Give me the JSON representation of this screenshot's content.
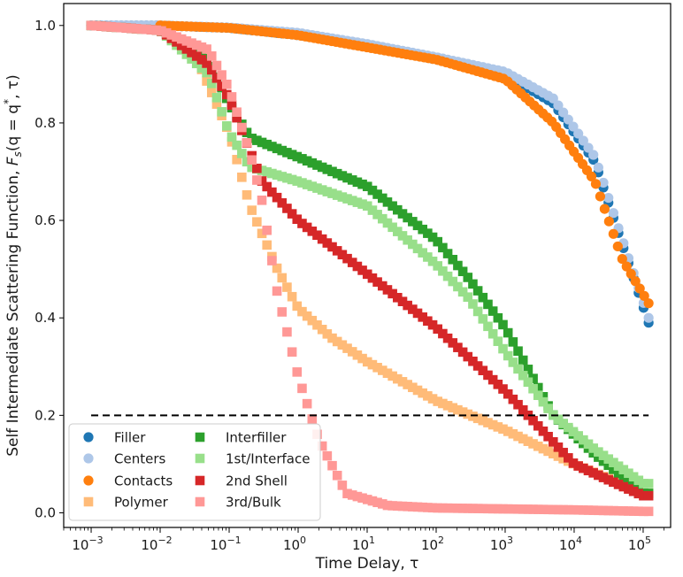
{
  "chart_data": {
    "type": "scatter",
    "title": "",
    "xlabel": "Time Delay, τ",
    "ylabel": "Self Intermediate Scattering Function, F_s(q = q*, τ)",
    "ylabel_parts": {
      "prefix": "Self Intermediate Scattering Function, ",
      "F": "F",
      "F_sub": "s",
      "mid": "(q = q",
      "star": "*",
      "suffix": ", τ)"
    },
    "xscale": "log",
    "xlim": [
      0.0004,
      250000
    ],
    "ylim": [
      -0.03,
      1.045
    ],
    "xticks": [
      {
        "value": 0.001,
        "base": "10",
        "exp": "−3"
      },
      {
        "value": 0.01,
        "base": "10",
        "exp": "−2"
      },
      {
        "value": 0.1,
        "base": "10",
        "exp": "−1"
      },
      {
        "value": 1,
        "base": "10",
        "exp": "0"
      },
      {
        "value": 10,
        "base": "10",
        "exp": "1"
      },
      {
        "value": 100,
        "base": "10",
        "exp": "2"
      },
      {
        "value": 1000,
        "base": "10",
        "exp": "3"
      },
      {
        "value": 10000,
        "base": "10",
        "exp": "4"
      },
      {
        "value": 100000,
        "base": "10",
        "exp": "5"
      }
    ],
    "yticks": [
      {
        "value": 0.0,
        "label": "0.0"
      },
      {
        "value": 0.2,
        "label": "0.2"
      },
      {
        "value": 0.4,
        "label": "0.4"
      },
      {
        "value": 0.6,
        "label": "0.6"
      },
      {
        "value": 0.8,
        "label": "0.8"
      },
      {
        "value": 1.0,
        "label": "1.0"
      }
    ],
    "reference_line": {
      "y": 0.2,
      "style": "dashed",
      "color": "#000000"
    },
    "legend_position": "lower-left",
    "series": [
      {
        "name": "Filler",
        "marker": "circle",
        "color": "#1f77b4",
        "x_range": [
          0.001,
          120000
        ],
        "anchors": [
          [
            0.001,
            1.0
          ],
          [
            0.01,
            1.0
          ],
          [
            0.1,
            0.995
          ],
          [
            1,
            0.98
          ],
          [
            10,
            0.96
          ],
          [
            100,
            0.93
          ],
          [
            1000,
            0.9
          ],
          [
            5000,
            0.84
          ],
          [
            20000,
            0.72
          ],
          [
            50000,
            0.55
          ],
          [
            120000,
            0.39
          ]
        ]
      },
      {
        "name": "Centers",
        "marker": "circle",
        "color": "#aec7e8",
        "x_range": [
          0.001,
          120000
        ],
        "anchors": [
          [
            0.001,
            1.0
          ],
          [
            0.01,
            1.0
          ],
          [
            0.1,
            0.996
          ],
          [
            1,
            0.985
          ],
          [
            10,
            0.962
          ],
          [
            100,
            0.935
          ],
          [
            1000,
            0.905
          ],
          [
            5000,
            0.85
          ],
          [
            20000,
            0.73
          ],
          [
            50000,
            0.56
          ],
          [
            120000,
            0.4
          ]
        ]
      },
      {
        "name": "Contacts",
        "marker": "circle",
        "color": "#ff7f0e",
        "x_range": [
          0.01,
          120000
        ],
        "anchors": [
          [
            0.01,
            1.0
          ],
          [
            0.1,
            0.995
          ],
          [
            1,
            0.98
          ],
          [
            10,
            0.955
          ],
          [
            100,
            0.93
          ],
          [
            1000,
            0.89
          ],
          [
            5000,
            0.8
          ],
          [
            20000,
            0.68
          ],
          [
            50000,
            0.52
          ],
          [
            120000,
            0.43
          ]
        ]
      },
      {
        "name": "Polymer",
        "marker": "square",
        "color": "#ffbb78",
        "x_range": [
          0.001,
          120000
        ],
        "anchors": [
          [
            0.001,
            1.0
          ],
          [
            0.01,
            0.99
          ],
          [
            0.03,
            0.95
          ],
          [
            0.1,
            0.78
          ],
          [
            0.2,
            0.63
          ],
          [
            0.5,
            0.5
          ],
          [
            1,
            0.42
          ],
          [
            3,
            0.36
          ],
          [
            10,
            0.31
          ],
          [
            100,
            0.23
          ],
          [
            1000,
            0.17
          ],
          [
            10000,
            0.1
          ],
          [
            100000,
            0.04
          ]
        ]
      },
      {
        "name": "Interfiller",
        "marker": "square",
        "color": "#2ca02c",
        "x_range": [
          0.001,
          120000
        ],
        "anchors": [
          [
            0.001,
            1.0
          ],
          [
            0.01,
            0.99
          ],
          [
            0.05,
            0.93
          ],
          [
            0.1,
            0.84
          ],
          [
            0.2,
            0.77
          ],
          [
            1,
            0.73
          ],
          [
            10,
            0.67
          ],
          [
            100,
            0.56
          ],
          [
            300,
            0.48
          ],
          [
            1000,
            0.38
          ],
          [
            5000,
            0.2
          ],
          [
            20000,
            0.12
          ],
          [
            100000,
            0.04
          ]
        ]
      },
      {
        "name": "1st/Interface",
        "marker": "square",
        "color": "#98df8a",
        "x_range": [
          0.001,
          120000
        ],
        "anchors": [
          [
            0.001,
            1.0
          ],
          [
            0.01,
            0.99
          ],
          [
            0.05,
            0.9
          ],
          [
            0.1,
            0.78
          ],
          [
            0.2,
            0.71
          ],
          [
            1,
            0.68
          ],
          [
            10,
            0.63
          ],
          [
            100,
            0.51
          ],
          [
            300,
            0.44
          ],
          [
            1000,
            0.33
          ],
          [
            5000,
            0.2
          ],
          [
            20000,
            0.13
          ],
          [
            100000,
            0.06
          ]
        ]
      },
      {
        "name": "2nd Shell",
        "marker": "square",
        "color": "#d62728",
        "x_range": [
          0.001,
          120000
        ],
        "anchors": [
          [
            0.001,
            1.0
          ],
          [
            0.01,
            0.99
          ],
          [
            0.05,
            0.92
          ],
          [
            0.1,
            0.85
          ],
          [
            0.3,
            0.68
          ],
          [
            1,
            0.6
          ],
          [
            10,
            0.49
          ],
          [
            100,
            0.38
          ],
          [
            1000,
            0.25
          ],
          [
            10000,
            0.1
          ],
          [
            100000,
            0.035
          ]
        ]
      },
      {
        "name": "3rd/Bulk",
        "marker": "square",
        "color": "#ff9896",
        "x_range": [
          0.001,
          120000
        ],
        "anchors": [
          [
            0.001,
            1.0
          ],
          [
            0.01,
            0.99
          ],
          [
            0.05,
            0.95
          ],
          [
            0.1,
            0.87
          ],
          [
            0.2,
            0.74
          ],
          [
            0.3,
            0.64
          ],
          [
            0.5,
            0.45
          ],
          [
            1,
            0.28
          ],
          [
            2,
            0.15
          ],
          [
            5,
            0.04
          ],
          [
            20,
            0.015
          ],
          [
            100,
            0.01
          ],
          [
            10000,
            0.006
          ],
          [
            100000,
            0.003
          ]
        ]
      }
    ]
  }
}
